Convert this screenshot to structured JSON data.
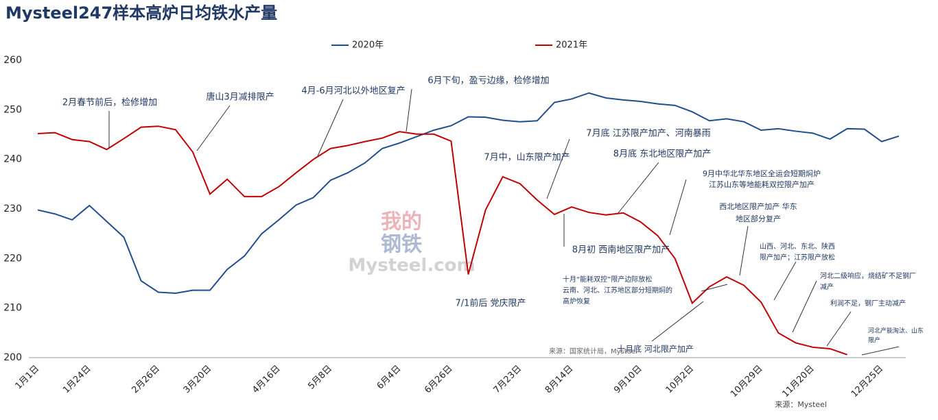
{
  "chart_data": {
    "type": "line",
    "title": "Mysteel247样本高炉日均铁水产量",
    "categories": [
      "1月1日",
      null,
      null,
      "1月24日",
      null,
      null,
      null,
      "2月26日",
      null,
      null,
      "3月20日",
      null,
      null,
      null,
      "4月16日",
      null,
      null,
      "5月8日",
      null,
      null,
      null,
      "6月4日",
      null,
      null,
      "6月26日",
      null,
      null,
      null,
      "7月23日",
      null,
      null,
      "8月14日",
      null,
      null,
      null,
      "9月10日",
      null,
      null,
      "10月2日",
      null,
      null,
      null,
      "10月29日",
      null,
      null,
      "11月20日",
      null,
      null,
      null,
      "12月25日",
      null
    ],
    "series": [
      {
        "name": "2020年",
        "color": "#1f4e8c",
        "values": [
          229.8,
          229,
          227.8,
          230.7,
          227.5,
          224.3,
          215.5,
          213.2,
          213,
          213.6,
          213.6,
          217.8,
          220.5,
          225,
          227.8,
          230.8,
          232.3,
          235.8,
          237.3,
          239.3,
          242.2,
          243.3,
          244.6,
          245.9,
          246.8,
          248.6,
          248.5,
          247.9,
          247.6,
          247.8,
          251.5,
          252.2,
          253.4,
          252.4,
          252,
          251.7,
          251.2,
          250.9,
          249.6,
          247.8,
          248.2,
          247.6,
          245.9,
          246.2,
          245.7,
          245.3,
          244.1,
          246.2,
          246.1,
          243.6,
          244.7
        ]
      },
      {
        "name": "2021年",
        "color": "#c00000",
        "values": [
          245.2,
          245.4,
          244,
          243.6,
          242,
          244.2,
          246.5,
          246.7,
          246,
          241.5,
          233,
          236,
          232.5,
          232.5,
          234.5,
          237.3,
          240,
          242.2,
          242.8,
          243.6,
          244.3,
          245.6,
          245.1,
          245.1,
          243.7,
          216.8,
          229.8,
          236.5,
          235.1,
          231.8,
          228.9,
          230.4,
          229.3,
          228.8,
          229.2,
          227.4,
          224.6,
          220,
          211,
          214.3,
          216.3,
          214.6,
          211.2,
          205,
          203,
          202.1,
          201.8,
          200.6,
          null,
          null,
          null
        ]
      }
    ],
    "ylim": [
      200,
      260
    ],
    "yticks": [
      200,
      210,
      220,
      230,
      240,
      250,
      260
    ],
    "grid": false,
    "annotations": [
      [
        "2月春节前后，检修增加"
      ],
      [
        "唐山3月减排限产"
      ],
      [
        "4月-6月河北以外地区复产"
      ],
      [
        "6月下旬，盈亏边缘，检修增加"
      ],
      [
        "7月底 江苏限产加产、河南暴雨"
      ],
      [
        "7月中，山东限产加产"
      ],
      [
        "8月底 东北地区限产加产"
      ],
      [
        "9月中华北华东地区全运会短期焖炉",
        "江苏山东等地能耗双控限产加产"
      ],
      [
        "8月初 西南地区限产加产"
      ],
      [
        "7/1前后 党庆限产"
      ],
      [
        "西北地区限产加产 华东",
        "地区部分复产"
      ],
      [
        "山西、河北、东北、陕西",
        "限产加产；江苏限产放松"
      ],
      [
        "十月“能耗双控”限产边际放松",
        "云南、河北、江苏地区部分短期焖的",
        "高炉恢复"
      ],
      [
        "河北二级响应，烧结矿不足钢厂",
        "减产"
      ],
      [
        "利润不足，钢厂主动减产"
      ],
      [
        "河北产能淘汰、山东",
        "限产"
      ],
      [
        "十月底 河北限产加产"
      ]
    ],
    "watermark": [
      "我的",
      "钢铁",
      "Mysteel.com"
    ],
    "sources": [
      "来源：国家统计局，Mysteel",
      "来源：Mysteel"
    ]
  }
}
